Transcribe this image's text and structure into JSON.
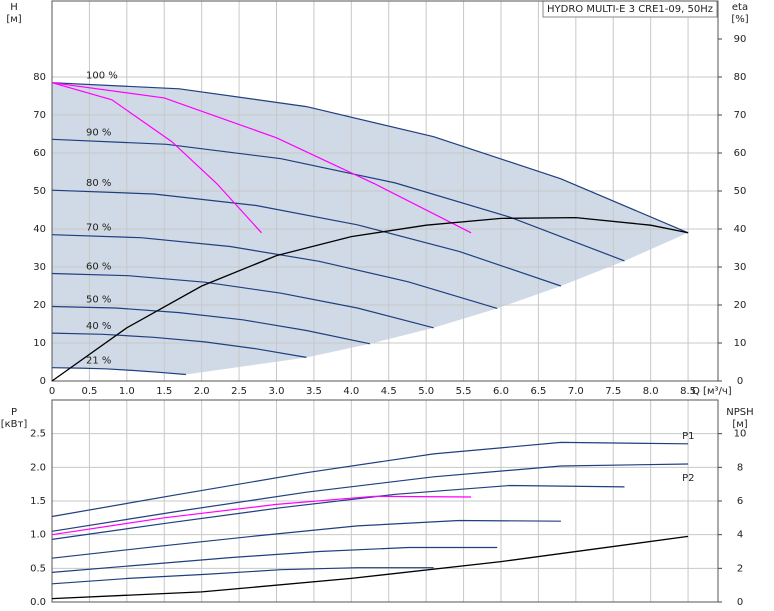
{
  "chart_data": [
    {
      "type": "line",
      "title": "HYDRO MULTI-E 3 CRE1-09, 50Hz",
      "x_label": "Q [м³/ч]",
      "y_label": [
        "H",
        "[м]"
      ],
      "y2_label": [
        "eta",
        "[%]"
      ],
      "xlim": [
        0,
        8.9
      ],
      "xticks": [
        0,
        0.5,
        {
          "value": 1,
          "label": "1.0"
        },
        1.5,
        {
          "value": 2,
          "label": "2.0"
        },
        2.5,
        {
          "value": 3,
          "label": "3.0"
        },
        3.5,
        {
          "value": 4,
          "label": "4.0"
        },
        4.5,
        {
          "value": 5,
          "label": "5.0"
        },
        5.5,
        {
          "value": 6,
          "label": "6.0"
        },
        6.5,
        {
          "value": 7,
          "label": "7.0"
        },
        7.5,
        {
          "value": 8,
          "label": "8.0"
        },
        8.5
      ],
      "ylim": [
        0,
        100
      ],
      "yticks": [
        0,
        10,
        20,
        30,
        40,
        50,
        60,
        70,
        80
      ],
      "y2lim": [
        0,
        100
      ],
      "y2ticks": [
        0,
        10,
        20,
        30,
        40,
        50,
        60,
        70,
        80,
        90
      ],
      "shade_color": "#cbd6e4",
      "series": [
        {
          "name": "100 %",
          "color": "#1f3f7f",
          "x": [
            0,
            1.7,
            3.4,
            5.1,
            6.8,
            8.5
          ],
          "values": [
            78.5,
            76.9,
            72.2,
            64.3,
            53.2,
            39.0
          ]
        },
        {
          "name": "90 %",
          "color": "#1f3f7f",
          "x": [
            0,
            1.53,
            3.06,
            4.59,
            6.12,
            7.65
          ],
          "values": [
            63.6,
            62.3,
            58.5,
            52.1,
            43.1,
            31.6
          ]
        },
        {
          "name": "80 %",
          "color": "#1f3f7f",
          "x": [
            0,
            1.36,
            2.72,
            4.08,
            5.44,
            6.8
          ],
          "values": [
            50.2,
            49.2,
            46.2,
            41.1,
            34.1,
            25.0
          ]
        },
        {
          "name": "70 %",
          "color": "#1f3f7f",
          "x": [
            0,
            1.19,
            2.38,
            3.57,
            4.76,
            5.95
          ],
          "values": [
            38.5,
            37.7,
            35.4,
            31.5,
            26.1,
            19.1
          ]
        },
        {
          "name": "60 %",
          "color": "#1f3f7f",
          "x": [
            0,
            1.02,
            2.04,
            3.06,
            4.08,
            5.1
          ],
          "values": [
            28.3,
            27.7,
            26.0,
            23.1,
            19.2,
            14.0
          ]
        },
        {
          "name": "50 %",
          "color": "#1f3f7f",
          "x": [
            0,
            0.85,
            1.7,
            2.55,
            3.4,
            4.25
          ],
          "values": [
            19.6,
            19.2,
            18.0,
            16.1,
            13.3,
            9.8
          ]
        },
        {
          "name": "40 %",
          "color": "#1f3f7f",
          "x": [
            0,
            0.68,
            1.36,
            2.04,
            2.72,
            3.4
          ],
          "values": [
            12.6,
            12.3,
            11.5,
            10.3,
            8.5,
            6.2
          ]
        },
        {
          "name": "21 %",
          "color": "#1f3f7f",
          "x": [
            0,
            0.36,
            0.71,
            1.07,
            1.43,
            1.79
          ],
          "values": [
            3.5,
            3.4,
            3.2,
            2.8,
            2.3,
            1.7
          ]
        },
        {
          "color": "#ff00ff",
          "x": [
            0,
            0.8,
            1.6,
            2.2,
            2.8
          ],
          "values": [
            78.5,
            74,
            63,
            52,
            39
          ]
        },
        {
          "color": "#ff00ff",
          "x": [
            0,
            1.5,
            3.0,
            4.3,
            5.6
          ],
          "values": [
            78.5,
            74.5,
            64,
            52,
            39
          ]
        },
        {
          "color": "#000000",
          "axis": "y2",
          "x": [
            0,
            1,
            2,
            3,
            4,
            5,
            6,
            7,
            8,
            8.5
          ],
          "values": [
            0,
            14,
            25,
            33,
            38,
            41,
            42.8,
            43,
            41,
            39
          ]
        }
      ]
    },
    {
      "type": "line",
      "y_label": [
        "P",
        "[кВт]"
      ],
      "y2_label": [
        "NPSH",
        "[м]"
      ],
      "xlim": [
        0,
        8.9
      ],
      "ylim": [
        0,
        3
      ],
      "yticks": [
        {
          "value": 0,
          "label": "0.0"
        },
        0.5,
        {
          "value": 1,
          "label": "1.0"
        },
        1.5,
        {
          "value": 2,
          "label": "2.0"
        },
        2.5
      ],
      "y2lim": [
        0,
        12
      ],
      "y2ticks": [
        0,
        2,
        4,
        6,
        8,
        10
      ],
      "series": [
        {
          "name": "P1",
          "color": "#1f3f7f",
          "x": [
            0,
            1.7,
            3.4,
            5.1,
            6.8,
            8.5
          ],
          "values": [
            1.27,
            1.6,
            1.92,
            2.2,
            2.37,
            2.35
          ]
        },
        {
          "name": "P2",
          "color": "#1f3f7f",
          "x": [
            0,
            1.7,
            3.4,
            5.1,
            6.8,
            8.5
          ],
          "values": [
            1.05,
            1.35,
            1.63,
            1.86,
            2.02,
            2.05
          ]
        },
        {
          "color": "#1f3f7f",
          "x": [
            0,
            1.53,
            3.06,
            4.59,
            6.12,
            7.65
          ],
          "values": [
            0.93,
            1.17,
            1.4,
            1.6,
            1.73,
            1.71
          ]
        },
        {
          "color": "#1f3f7f",
          "x": [
            0,
            1.36,
            2.72,
            4.08,
            5.44,
            6.8
          ],
          "values": [
            0.65,
            0.82,
            0.98,
            1.13,
            1.21,
            1.2
          ]
        },
        {
          "color": "#1f3f7f",
          "x": [
            0,
            1.19,
            2.38,
            3.57,
            4.76,
            5.95
          ],
          "values": [
            0.44,
            0.55,
            0.66,
            0.75,
            0.81,
            0.81
          ]
        },
        {
          "color": "#1f3f7f",
          "x": [
            0,
            1.02,
            2.04,
            3.06,
            4.08,
            5.1
          ],
          "values": [
            0.27,
            0.35,
            0.41,
            0.48,
            0.51,
            0.51
          ]
        },
        {
          "color": "#ff00ff",
          "x": [
            0,
            1.5,
            3.0,
            4.3,
            5.6
          ],
          "values": [
            1.0,
            1.25,
            1.45,
            1.57,
            1.56
          ]
        },
        {
          "color": "#000000",
          "axis": "y2",
          "x": [
            0,
            2,
            4,
            6,
            8.5
          ],
          "values": [
            0.2,
            0.6,
            1.4,
            2.4,
            3.9
          ]
        }
      ]
    }
  ]
}
